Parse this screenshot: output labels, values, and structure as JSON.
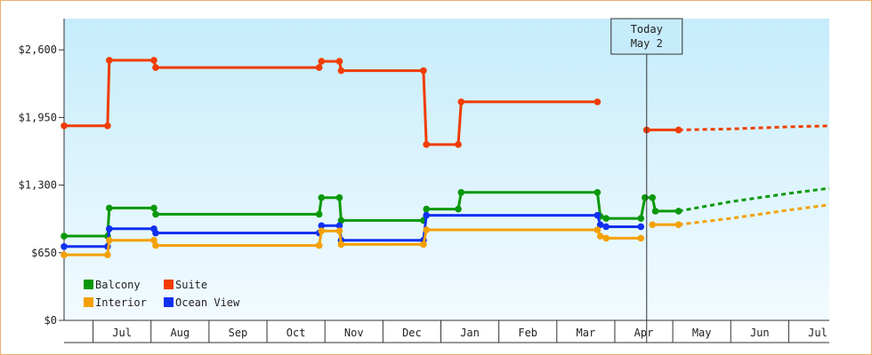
{
  "chart_data": {
    "type": "line",
    "title": "",
    "xlabel": "",
    "ylabel": "",
    "ylim": [
      0,
      2900
    ],
    "y_ticks": [
      {
        "value": 0,
        "label": "$0"
      },
      {
        "value": 650,
        "label": "$650"
      },
      {
        "value": 1300,
        "label": "$1,300"
      },
      {
        "value": 1950,
        "label": "$1,950"
      },
      {
        "value": 2600,
        "label": "$2,600"
      }
    ],
    "x_ticks": [
      "Jul",
      "Aug",
      "Sep",
      "Oct",
      "Nov",
      "Dec",
      "Jan",
      "Feb",
      "Mar",
      "Apr",
      "May",
      "Jun",
      "Jul"
    ],
    "x_range_months": [
      0,
      13.2
    ],
    "background": {
      "top": "#c6ecfb",
      "bottom": "#f2fbff"
    },
    "today": {
      "label_line1": "Today",
      "label_line2": "May 2",
      "x": 10.05
    },
    "legend": {
      "placement": "bottom-left"
    },
    "series": [
      {
        "name": "Suite",
        "color": "#f03c00",
        "segments": [
          [
            [
              0,
              1870
            ],
            [
              0.75,
              1870
            ],
            [
              0.78,
              2500
            ],
            [
              1.55,
              2500
            ],
            [
              1.58,
              2430
            ],
            [
              4.4,
              2430
            ],
            [
              4.44,
              2490
            ],
            [
              4.75,
              2490
            ],
            [
              4.78,
              2400
            ],
            [
              6.2,
              2400
            ],
            [
              6.25,
              1690
            ],
            [
              6.8,
              1690
            ],
            [
              6.85,
              2100
            ],
            [
              9.2,
              2100
            ]
          ],
          [
            [
              10.05,
              1830
            ],
            [
              10.6,
              1830
            ]
          ]
        ],
        "projection": [
          [
            10.6,
            1830
          ],
          [
            11.5,
            1840
          ],
          [
            12.5,
            1860
          ],
          [
            13.2,
            1870
          ]
        ]
      },
      {
        "name": "Balcony",
        "color": "#0a980a",
        "segments": [
          [
            [
              0,
              810
            ],
            [
              0.75,
              810
            ],
            [
              0.78,
              1080
            ],
            [
              1.55,
              1080
            ],
            [
              1.58,
              1020
            ],
            [
              4.4,
              1020
            ],
            [
              4.44,
              1180
            ],
            [
              4.75,
              1180
            ],
            [
              4.78,
              960
            ],
            [
              6.2,
              960
            ],
            [
              6.25,
              1070
            ],
            [
              6.8,
              1070
            ],
            [
              6.85,
              1230
            ],
            [
              9.2,
              1230
            ],
            [
              9.25,
              1000
            ],
            [
              9.35,
              980
            ],
            [
              9.95,
              980
            ],
            [
              10.02,
              1180
            ],
            [
              10.15,
              1180
            ],
            [
              10.2,
              1050
            ],
            [
              10.6,
              1050
            ]
          ]
        ],
        "projection": [
          [
            10.6,
            1050
          ],
          [
            11.5,
            1140
          ],
          [
            12.5,
            1220
          ],
          [
            13.2,
            1270
          ]
        ]
      },
      {
        "name": "Ocean View",
        "color": "#1030f0",
        "segments": [
          [
            [
              0,
              710
            ],
            [
              0.75,
              710
            ],
            [
              0.78,
              880
            ],
            [
              1.55,
              880
            ],
            [
              1.58,
              840
            ],
            [
              4.4,
              840
            ],
            [
              4.44,
              910
            ],
            [
              4.75,
              910
            ],
            [
              4.78,
              770
            ],
            [
              6.2,
              770
            ],
            [
              6.25,
              1010
            ],
            [
              9.2,
              1010
            ],
            [
              9.25,
              920
            ],
            [
              9.35,
              900
            ],
            [
              9.95,
              900
            ]
          ]
        ],
        "projection": []
      },
      {
        "name": "Interior",
        "color": "#f4a000",
        "segments": [
          [
            [
              0,
              630
            ],
            [
              0.75,
              630
            ],
            [
              0.78,
              770
            ],
            [
              1.55,
              770
            ],
            [
              1.58,
              720
            ],
            [
              4.4,
              720
            ],
            [
              4.44,
              860
            ],
            [
              4.75,
              860
            ],
            [
              4.78,
              730
            ],
            [
              6.2,
              730
            ],
            [
              6.25,
              870
            ],
            [
              9.2,
              870
            ],
            [
              9.25,
              810
            ],
            [
              9.35,
              790
            ],
            [
              9.95,
              790
            ]
          ],
          [
            [
              10.15,
              920
            ],
            [
              10.6,
              920
            ]
          ]
        ],
        "projection": [
          [
            10.6,
            920
          ],
          [
            11.5,
            980
          ],
          [
            12.5,
            1060
          ],
          [
            13.2,
            1110
          ]
        ]
      }
    ]
  }
}
